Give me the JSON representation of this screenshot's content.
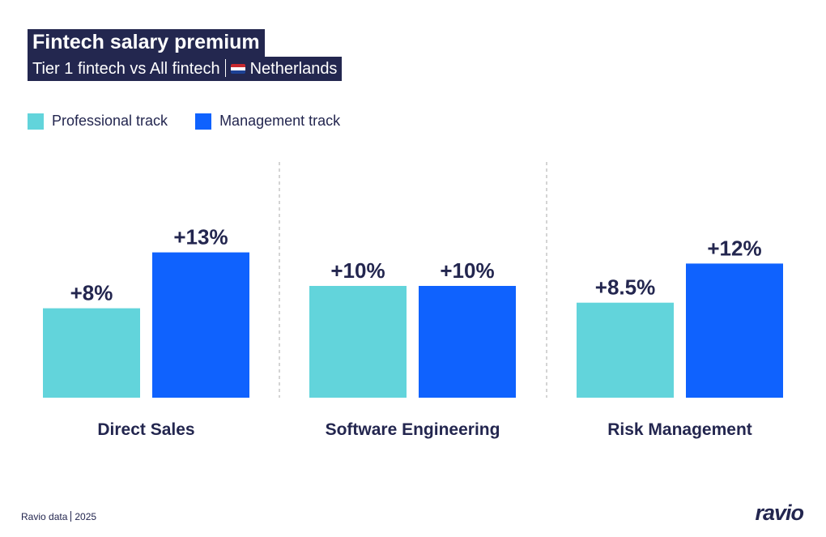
{
  "chart_data": {
    "type": "bar",
    "title": "Fintech salary premium",
    "subtitle": "Tier 1 fintech vs All fintech",
    "region": "Netherlands",
    "categories": [
      "Direct Sales",
      "Software Engineering",
      "Risk Management"
    ],
    "series": [
      {
        "name": "Professional track",
        "color": "#62d4db",
        "values": [
          8,
          10,
          8.5
        ],
        "labels": [
          "+8%",
          "+10%",
          "+8.5%"
        ]
      },
      {
        "name": "Management track",
        "color": "#0f62fe",
        "values": [
          13,
          10,
          12
        ],
        "labels": [
          "+13%",
          "+10%",
          "+12%"
        ]
      }
    ],
    "xlabel": "",
    "ylabel": "",
    "grid": false,
    "legend": "top-left"
  },
  "footer": {
    "source": "Ravio data",
    "year": "2025",
    "logo": "ravio"
  }
}
